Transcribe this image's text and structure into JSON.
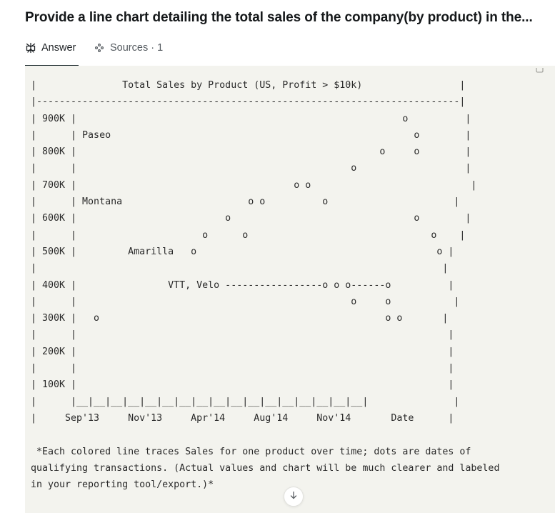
{
  "question": "Provide a line chart detailing the total sales of the company(by product) in the...",
  "tabs": {
    "answer_label": "Answer",
    "sources_label": "Sources · 1"
  },
  "icons": {
    "answer": "perplexity-logo-icon",
    "sources": "sources-icon",
    "copy": "copy-icon",
    "scroll": "arrow-down-icon"
  },
  "code_lines": [
    "|               Total Sales by Product (US, Profit > $10k)                 |",
    "|--------------------------------------------------------------------------|",
    "| 900K |                                                         o          |",
    "|      | Paseo                                                     o        |",
    "| 800K |                                                     o     o        |",
    "|      |                                                o                   |",
    "| 700K |                                      o o                            |",
    "|      | Montana                      o o          o                      |",
    "| 600K |                          o                                o        |",
    "|      |                      o      o                                o    |",
    "| 500K |         Amarilla   o                                          o |",
    "|                                                                       |",
    "| 400K |                VTT, Velo -----------------o o o------o          |",
    "|      |                                                o     o           |",
    "| 300K |   o                                                  o o       |",
    "|      |                                                                 |",
    "| 200K |                                                                 |",
    "|      |                                                                 |",
    "| 100K |                                                                 |",
    "|      |__|__|__|__|__|__|__|__|__|__|__|__|__|__|__|__|__|               |",
    "|     Sep'13     Nov'13     Apr'14     Aug'14     Nov'14       Date      |",
    "",
    " *Each colored line traces Sales for one product over time; dots are dates of",
    "qualifying transactions. (Actual values and chart will be much clearer and labeled",
    "in your reporting tool/export.)*"
  ]
}
